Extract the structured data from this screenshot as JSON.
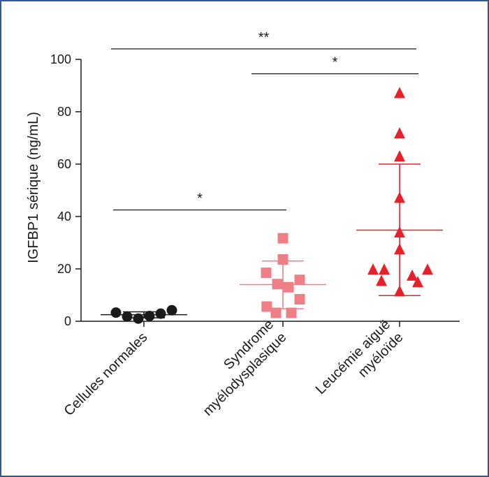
{
  "chart_data": {
    "type": "scatter",
    "title": "",
    "ylabel": "IGFBP1 sérique (ng/mL)",
    "ylim": [
      0,
      100
    ],
    "yticks": [
      0,
      20,
      40,
      60,
      80,
      100
    ],
    "categories": [
      {
        "lines": [
          "Cellules normales"
        ]
      },
      {
        "lines": [
          "Syndrome",
          "myélodysplasique"
        ]
      },
      {
        "lines": [
          "Leucémie aiguë",
          "myéloïde"
        ]
      }
    ],
    "series": [
      {
        "category": "Cellules normales",
        "marker": "circle",
        "color": "#1a1a1a",
        "points": [
          {
            "offset": -1.0,
            "y": 3.3
          },
          {
            "offset": -0.6,
            "y": 1.8
          },
          {
            "offset": -0.2,
            "y": 1.0
          },
          {
            "offset": 0.2,
            "y": 2.0
          },
          {
            "offset": 0.6,
            "y": 2.9
          },
          {
            "offset": 1.0,
            "y": 4.2
          }
        ],
        "mean": 2.5,
        "sd": [
          1.3,
          3.6
        ]
      },
      {
        "category": "Syndrome myélodysplasique",
        "marker": "square",
        "color": "#ef7f86",
        "points": [
          {
            "offset": -0.6,
            "y": 18.5
          },
          {
            "offset": -0.2,
            "y": 14.2
          },
          {
            "offset": 0.2,
            "y": 13.0
          },
          {
            "offset": 0.6,
            "y": 15.8
          },
          {
            "offset": -0.58,
            "y": 5.6
          },
          {
            "offset": -0.25,
            "y": 3.2
          },
          {
            "offset": 0.3,
            "y": 3.2
          },
          {
            "offset": 0.6,
            "y": 8.4
          },
          {
            "offset": 0.0,
            "y": 23.6
          },
          {
            "offset": 0.0,
            "y": 31.7
          }
        ],
        "mean": 14.0,
        "sd": [
          4.8,
          23.0
        ]
      },
      {
        "category": "Leucémie aiguë myéloïde",
        "marker": "triangle",
        "color": "#e8202a",
        "points": [
          {
            "offset": 0.0,
            "y": 87.2
          },
          {
            "offset": 0.0,
            "y": 71.8
          },
          {
            "offset": 0.0,
            "y": 63.0
          },
          {
            "offset": 0.0,
            "y": 47.2
          },
          {
            "offset": 0.0,
            "y": 34.0
          },
          {
            "offset": 0.0,
            "y": 27.5
          },
          {
            "offset": -0.95,
            "y": 19.8
          },
          {
            "offset": -0.55,
            "y": 19.8
          },
          {
            "offset": -0.65,
            "y": 15.5
          },
          {
            "offset": 0.0,
            "y": 11.5
          },
          {
            "offset": 0.45,
            "y": 17.5
          },
          {
            "offset": 0.65,
            "y": 15.0
          },
          {
            "offset": 1.0,
            "y": 19.8
          }
        ],
        "mean": 34.8,
        "sd": [
          9.8,
          60.0
        ]
      }
    ],
    "significance": [
      {
        "from": 0,
        "to": 2,
        "label": "**",
        "y": 104
      },
      {
        "from": 1,
        "to": 2,
        "label": "*",
        "y": 94.5
      },
      {
        "from": 0,
        "to": 1,
        "label": "*",
        "y": 42.5
      }
    ]
  }
}
